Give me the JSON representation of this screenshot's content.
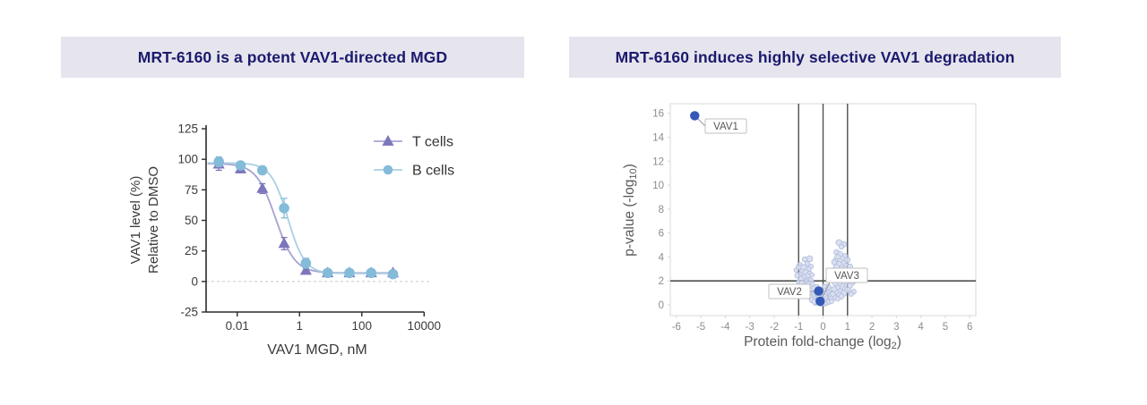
{
  "page": {
    "background": "#ffffff"
  },
  "theme": {
    "panel_title_bg": "#e6e5ee",
    "panel_title_color": "#1b1a6d",
    "axis_color": "#2a2a2a",
    "tick_label_color": "#3a3a3a",
    "volcano_tick_color": "#8c8c8c",
    "volcano_axis_label_color": "#5a5a5a",
    "volcano_border_color": "#d9d9d9",
    "volcano_ref_line_color": "#4f4f4f",
    "highlight_blue": "#3558b8",
    "cluster_fill": "#d7ddf0",
    "cluster_stroke": "#a9b5d8",
    "zero_line_color": "#cfcfcf",
    "label_box_border": "#c0c0c0",
    "label_box_text": "#555555"
  },
  "left_panel": {
    "title": "MRT-6160 is a potent VAV1-directed MGD"
  },
  "right_panel": {
    "title": "MRT-6160 induces highly selective VAV1 degradation"
  },
  "chart_data": [
    {
      "type": "line",
      "name": "dose-response",
      "xlabel": "VAV1 MGD, nM",
      "ylabel_lines": [
        "VAV1 level (%)",
        "Relative to DMSO"
      ],
      "x_scale": "log10",
      "x_ticks": [
        0.01,
        1,
        100,
        10000
      ],
      "x_tick_labels": [
        "0.01",
        "1",
        "100",
        "10000"
      ],
      "xlim_log": [
        -3,
        4
      ],
      "y_ticks": [
        -25,
        0,
        25,
        50,
        75,
        100,
        125
      ],
      "ylim": [
        -25,
        125
      ],
      "zero_line_y": 0,
      "doses_nM": [
        0.00256,
        0.0128,
        0.064,
        0.32,
        1.6,
        8,
        40,
        200,
        1000
      ],
      "series": [
        {
          "name": "T cells",
          "marker": "triangle",
          "marker_color": "#7c76bb",
          "line_color": "#a6a2d4",
          "values": [
            96,
            92,
            76,
            31,
            9,
            7,
            7,
            7,
            7
          ],
          "errors": [
            5,
            3,
            4,
            5,
            2,
            1.5,
            1.5,
            1.5,
            1.5
          ],
          "fit": {
            "top": 96.5,
            "bottom": 7,
            "ec50_nM": 0.17,
            "hill": 1.4
          }
        },
        {
          "name": "B cells",
          "marker": "circle",
          "marker_color": "#83bbd9",
          "line_color": "#abcfe3",
          "values": [
            98,
            95,
            91,
            60,
            15,
            7,
            7,
            7,
            6
          ],
          "errors": [
            4,
            2,
            3,
            8,
            4,
            1.5,
            1.5,
            1.5,
            2
          ],
          "fit": {
            "top": 97,
            "bottom": 6.5,
            "ec50_nM": 0.42,
            "hill": 1.6
          }
        }
      ],
      "legend_position": "top-right"
    },
    {
      "type": "scatter",
      "name": "volcano",
      "xlabel_parts": [
        "Protein fold-change (log",
        "2",
        ")"
      ],
      "ylabel_parts": [
        "p-value (-log",
        "10",
        ")"
      ],
      "x_ticks": [
        -6,
        -5,
        -4,
        -3,
        -2,
        -1,
        0,
        1,
        2,
        3,
        4,
        5,
        6
      ],
      "xlim": [
        -6.25,
        6.25
      ],
      "y_ticks": [
        0,
        2,
        4,
        6,
        8,
        10,
        12,
        14,
        16
      ],
      "ylim": [
        -0.9,
        16.8
      ],
      "ref_lines_x": [
        -1,
        0,
        1
      ],
      "ref_line_y": 2,
      "labeled_points": [
        {
          "label": "VAV1",
          "x": -5.25,
          "y": 15.8,
          "label_side": "right-below"
        },
        {
          "label": "VAV2",
          "x": -0.18,
          "y": 1.15,
          "label_side": "left"
        },
        {
          "label": "VAV3",
          "x": -0.12,
          "y": 0.3,
          "label_side": "above-right"
        }
      ],
      "background_points": [
        [
          -0.55,
          3.85,
          3.4
        ],
        [
          -0.75,
          3.8,
          2.8
        ],
        [
          -0.95,
          3.3,
          3.2
        ],
        [
          -0.65,
          3.45,
          2.6
        ],
        [
          -0.8,
          3.1,
          3.6
        ],
        [
          -0.5,
          3.2,
          2.7
        ],
        [
          -0.6,
          2.95,
          3.1
        ],
        [
          -0.85,
          2.8,
          2.5
        ],
        [
          -0.7,
          2.7,
          3.3
        ],
        [
          -0.55,
          2.6,
          2.9
        ],
        [
          -0.95,
          2.55,
          2.6
        ],
        [
          -1.05,
          2.45,
          3.0
        ],
        [
          -0.45,
          2.5,
          2.5
        ],
        [
          -0.65,
          2.35,
          3.5
        ],
        [
          -0.8,
          2.3,
          2.7
        ],
        [
          -0.9,
          2.15,
          3.1
        ],
        [
          -0.6,
          2.1,
          2.6
        ],
        [
          -0.5,
          2.0,
          3.2
        ],
        [
          -0.7,
          1.95,
          2.8
        ],
        [
          -1.0,
          1.9,
          2.5
        ],
        [
          -0.85,
          1.8,
          3.3
        ],
        [
          -0.6,
          1.75,
          2.6
        ],
        [
          -0.45,
          1.7,
          2.9
        ],
        [
          -0.75,
          1.6,
          3.1
        ],
        [
          -0.9,
          1.5,
          2.5
        ],
        [
          -0.55,
          1.45,
          3.4
        ],
        [
          -0.65,
          1.35,
          2.7
        ],
        [
          -0.8,
          1.25,
          2.9
        ],
        [
          -0.5,
          1.2,
          3.1
        ],
        [
          -0.7,
          1.1,
          2.6
        ],
        [
          -0.6,
          1.0,
          3.0
        ],
        [
          -0.45,
          0.95,
          2.6
        ],
        [
          -0.55,
          0.85,
          3.2
        ],
        [
          -0.4,
          0.75,
          2.7
        ],
        [
          -0.5,
          0.6,
          2.9
        ],
        [
          -0.35,
          0.55,
          2.6
        ],
        [
          -0.45,
          0.4,
          3.0
        ],
        [
          -0.3,
          0.35,
          2.6
        ],
        [
          -1.1,
          2.9,
          2.5
        ],
        [
          -1.0,
          3.15,
          2.8
        ],
        [
          -0.25,
          1.5,
          2.8
        ],
        [
          -0.2,
          1.3,
          3.1
        ],
        [
          -0.15,
          1.1,
          2.6
        ],
        [
          -0.25,
          0.95,
          2.9
        ],
        [
          -0.1,
          0.9,
          3.2
        ],
        [
          -0.2,
          0.75,
          2.6
        ],
        [
          -0.05,
          0.7,
          2.9
        ],
        [
          -0.15,
          0.6,
          3.3
        ],
        [
          0.0,
          0.55,
          2.6
        ],
        [
          -0.1,
          0.45,
          3.0
        ],
        [
          0.05,
          0.4,
          2.7
        ],
        [
          -0.05,
          0.3,
          3.1
        ],
        [
          0.1,
          0.28,
          2.6
        ],
        [
          -0.15,
          0.2,
          2.9
        ],
        [
          0.0,
          0.15,
          3.2
        ],
        [
          0.08,
          0.1,
          2.6
        ],
        [
          -0.08,
          0.08,
          2.8
        ],
        [
          0.15,
          0.2,
          3.0
        ],
        [
          0.2,
          0.35,
          2.6
        ],
        [
          0.12,
          0.5,
          3.2
        ],
        [
          0.22,
          0.6,
          2.7
        ],
        [
          0.3,
          0.45,
          2.9
        ],
        [
          0.18,
          0.75,
          3.1
        ],
        [
          0.28,
          0.8,
          2.6
        ],
        [
          0.1,
          0.65,
          2.8
        ],
        [
          0.05,
          0.85,
          3.0
        ],
        [
          0.33,
          0.65,
          2.6
        ],
        [
          0.25,
          0.25,
          2.8
        ],
        [
          0.35,
          0.3,
          2.6
        ],
        [
          -0.3,
          0.15,
          2.7
        ],
        [
          -0.35,
          0.25,
          2.9
        ],
        [
          -0.02,
          1.0,
          2.6
        ],
        [
          0.3,
          0.95,
          3.1
        ],
        [
          0.15,
          1.05,
          2.7
        ],
        [
          0.02,
          1.2,
          3.0
        ],
        [
          0.25,
          1.15,
          2.6
        ],
        [
          0.1,
          1.35,
          2.9
        ],
        [
          0.3,
          1.3,
          2.6
        ],
        [
          0.2,
          1.5,
          3.1
        ],
        [
          0.05,
          1.55,
          2.7
        ],
        [
          0.65,
          5.2,
          3.3
        ],
        [
          0.85,
          5.05,
          3.0
        ],
        [
          0.75,
          4.85,
          2.7
        ],
        [
          0.55,
          4.4,
          2.9
        ],
        [
          0.7,
          4.2,
          3.3
        ],
        [
          0.9,
          4.1,
          2.6
        ],
        [
          0.6,
          3.95,
          3.5
        ],
        [
          0.8,
          3.85,
          2.8
        ],
        [
          1.0,
          3.75,
          3.1
        ],
        [
          0.5,
          3.7,
          2.6
        ],
        [
          0.7,
          3.6,
          3.3
        ],
        [
          0.85,
          3.5,
          2.7
        ],
        [
          0.65,
          3.4,
          3.0
        ],
        [
          0.95,
          3.3,
          2.6
        ],
        [
          1.1,
          3.2,
          2.9
        ],
        [
          0.55,
          3.15,
          3.2
        ],
        [
          0.75,
          3.05,
          2.6
        ],
        [
          0.9,
          2.95,
          3.4
        ],
        [
          0.6,
          2.85,
          2.7
        ],
        [
          1.0,
          2.8,
          3.0
        ],
        [
          0.8,
          2.7,
          2.6
        ],
        [
          0.7,
          2.6,
          3.2
        ],
        [
          1.15,
          2.55,
          2.7
        ],
        [
          0.5,
          2.5,
          3.0
        ],
        [
          0.9,
          2.4,
          2.6
        ],
        [
          0.65,
          2.3,
          3.3
        ],
        [
          1.05,
          2.25,
          2.7
        ],
        [
          0.75,
          2.15,
          3.0
        ],
        [
          0.85,
          2.05,
          2.6
        ],
        [
          0.6,
          2.0,
          3.2
        ],
        [
          0.95,
          1.9,
          2.7
        ],
        [
          1.2,
          1.85,
          2.9
        ],
        [
          0.5,
          1.8,
          3.1
        ],
        [
          0.7,
          1.7,
          2.6
        ],
        [
          1.1,
          1.6,
          2.9
        ],
        [
          0.8,
          1.5,
          3.2
        ],
        [
          0.6,
          1.45,
          2.6
        ],
        [
          0.9,
          1.35,
          2.9
        ],
        [
          1.0,
          1.25,
          3.1
        ],
        [
          0.7,
          1.15,
          2.6
        ],
        [
          0.55,
          1.05,
          2.9
        ],
        [
          0.85,
          0.95,
          3.2
        ],
        [
          0.65,
          0.85,
          2.6
        ],
        [
          0.75,
          0.7,
          2.9
        ],
        [
          0.5,
          0.6,
          3.1
        ],
        [
          0.6,
          0.5,
          2.6
        ],
        [
          1.25,
          1.1,
          2.8
        ],
        [
          1.15,
          0.9,
          2.6
        ],
        [
          0.45,
          1.3,
          2.9
        ],
        [
          0.4,
          0.9,
          2.7
        ],
        [
          0.42,
          2.9,
          2.6
        ],
        [
          0.45,
          3.55,
          2.8
        ],
        [
          1.3,
          2.0,
          2.6
        ]
      ]
    }
  ]
}
